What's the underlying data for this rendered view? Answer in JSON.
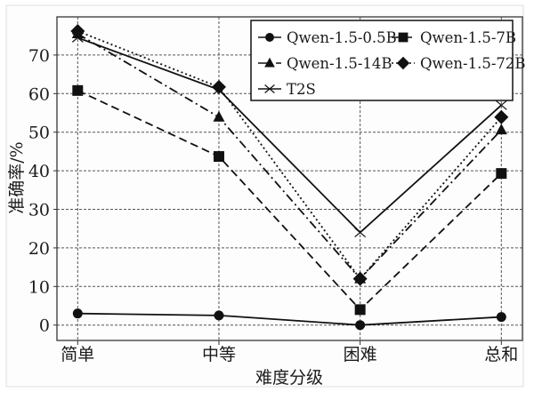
{
  "chart_data": {
    "type": "line",
    "title": "",
    "xlabel": "难度分级",
    "ylabel": "准确率/%",
    "categories": [
      "简单",
      "中等",
      "困难",
      "总和"
    ],
    "yticks": [
      0,
      10,
      20,
      30,
      40,
      50,
      60,
      70
    ],
    "ylim": [
      -4,
      79
    ],
    "grid": true,
    "legend_position": "upper right",
    "series": [
      {
        "name": "Qwen-1.5-0.5B",
        "marker": "circle",
        "linestyle": "solid",
        "values": [
          3.0,
          2.5,
          0.0,
          2.1
        ]
      },
      {
        "name": "Qwen-1.5-7B",
        "marker": "square",
        "linestyle": "dashed",
        "values": [
          60.8,
          43.7,
          4.0,
          39.3
        ]
      },
      {
        "name": "Qwen-1.5-14B",
        "marker": "triangle",
        "linestyle": "dashdot",
        "values": [
          75.5,
          53.9,
          12.0,
          50.6
        ]
      },
      {
        "name": "Qwen-1.5-72B",
        "marker": "diamond",
        "linestyle": "dotted",
        "values": [
          76.2,
          61.7,
          12.0,
          53.9
        ]
      },
      {
        "name": "T2S",
        "marker": "x",
        "linestyle": "solid",
        "values": [
          74.5,
          61.0,
          24.0,
          57.0
        ]
      }
    ]
  },
  "legend": {
    "items": [
      "Qwen-1.5-0.5B",
      "Qwen-1.5-7B",
      "Qwen-1.5-14B",
      "Qwen-1.5-72B",
      "T2S"
    ]
  },
  "colors": {
    "line": "#111111",
    "grid": "#555555",
    "axis": "#333333"
  }
}
